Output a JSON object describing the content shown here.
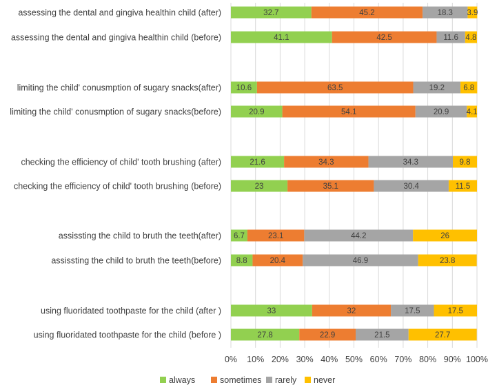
{
  "chart_data": {
    "type": "bar",
    "orientation": "horizontal",
    "stacked": "percent",
    "categories": [
      "assessing the  dental and gingiva healthin child (after)",
      "assessing the  dental and gingiva healthin child (before)",
      "limiting the child' conusmption of sugary snacks(after)",
      "limiting the child' conusmption of sugary snacks(before)",
      "checking the efficiency of child' tooth brushing (after)",
      "checking the efficiency of child' tooth brushing (before)",
      "assissting the child to bruth the teeth(after)",
      "assissting the child to bruth the teeth(before)",
      "using fluoridated toothpaste for the child (after )",
      "using fluoridated toothpaste for the child (before )"
    ],
    "series": [
      {
        "name": "always",
        "color": "#92D050",
        "values": [
          32.7,
          41.1,
          10.6,
          20.9,
          21.6,
          23,
          6.7,
          8.8,
          33,
          27.8
        ],
        "labels": [
          "32.7",
          "41.1",
          "10.6",
          "20.9",
          "21.6",
          "23",
          "6.7",
          "8.8",
          "33",
          "27.8"
        ]
      },
      {
        "name": "sometimes",
        "color": "#ED7D31",
        "values": [
          45.2,
          42.5,
          63.5,
          54.1,
          34.3,
          35.1,
          23.1,
          20.4,
          32,
          22.9
        ],
        "labels": [
          "45.2",
          "42.5",
          "63.5",
          "54.1",
          "34.3",
          "35.1",
          "23.1",
          "20.4",
          "32",
          "22.9"
        ]
      },
      {
        "name": "rarely",
        "color": "#A5A5A5",
        "values": [
          18.3,
          11.6,
          19.2,
          20.9,
          34.3,
          30.4,
          44.2,
          46.9,
          17.5,
          21.5
        ],
        "labels": [
          "18.3",
          "11.6",
          "19.2",
          "20.9",
          "34.3",
          "30.4",
          "44.2",
          "46.9",
          "17.5",
          "21.5"
        ]
      },
      {
        "name": "never",
        "color": "#FFC000",
        "values": [
          3.9,
          4.8,
          6.8,
          4.1,
          9.8,
          11.5,
          26,
          23.8,
          17.5,
          27.7
        ],
        "labels": [
          "3.9",
          "4.8",
          "6.8",
          "4.1",
          "9.8",
          "11.5",
          "26",
          "23.8",
          "17.5",
          "27.7"
        ]
      }
    ],
    "xlim": [
      0,
      100
    ],
    "x_ticks": [
      "0%",
      "10%",
      "20%",
      "30%",
      "40%",
      "50%",
      "60%",
      "70%",
      "80%",
      "90%",
      "100%"
    ],
    "grid": true,
    "legend_position": "bottom",
    "title": "",
    "xlabel": "",
    "ylabel": ""
  }
}
